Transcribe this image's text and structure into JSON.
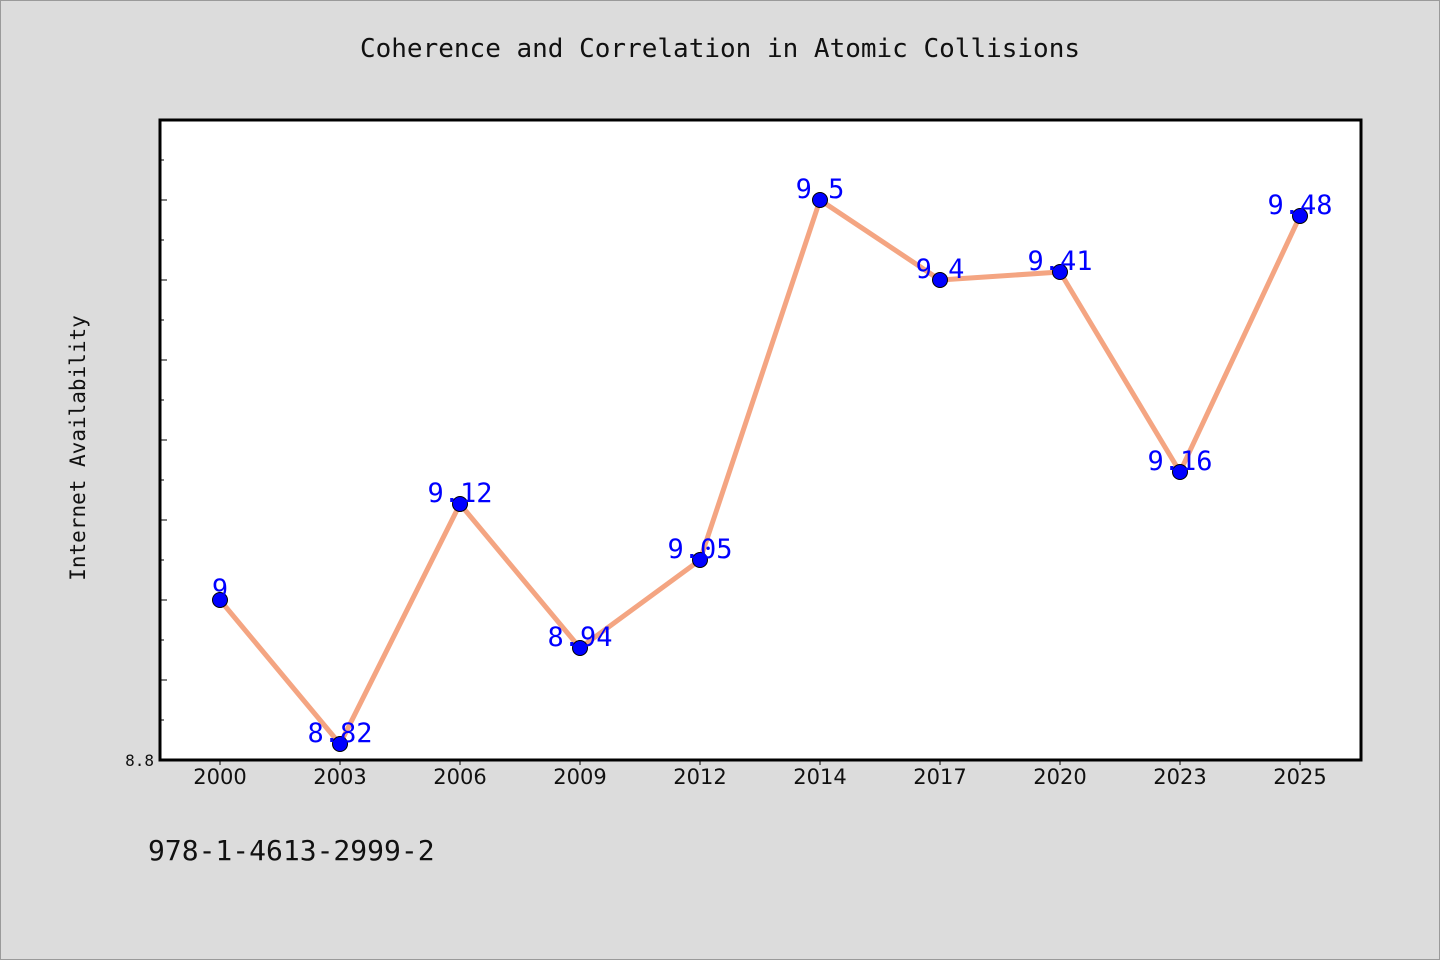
{
  "chart_data": {
    "type": "line",
    "title": "Coherence and Correlation in Atomic Collisions",
    "xlabel": "",
    "ylabel": "Internet Availability",
    "categories": [
      "2000",
      "2003",
      "2006",
      "2009",
      "2012",
      "2014",
      "2017",
      "2020",
      "2023",
      "2025"
    ],
    "series": [
      {
        "values": [
          9,
          8.82,
          9.12,
          8.94,
          9.05,
          9.5,
          9.4,
          9.41,
          9.16,
          9.48
        ],
        "labels": [
          "9",
          "8.82",
          "9.12",
          "8.94",
          "9.05",
          "9.5",
          "9.4",
          "9.41",
          "9.16",
          "9.48"
        ]
      }
    ],
    "ylim": [
      8.8,
      9.6
    ],
    "ytick_labels": [
      "8.8"
    ],
    "grid": false,
    "colors": {
      "line": "#f4a582",
      "marker": "#0000ff",
      "label": "#0000ff",
      "axes": "#000000"
    }
  },
  "footnote": "978-1-4613-2999-2"
}
